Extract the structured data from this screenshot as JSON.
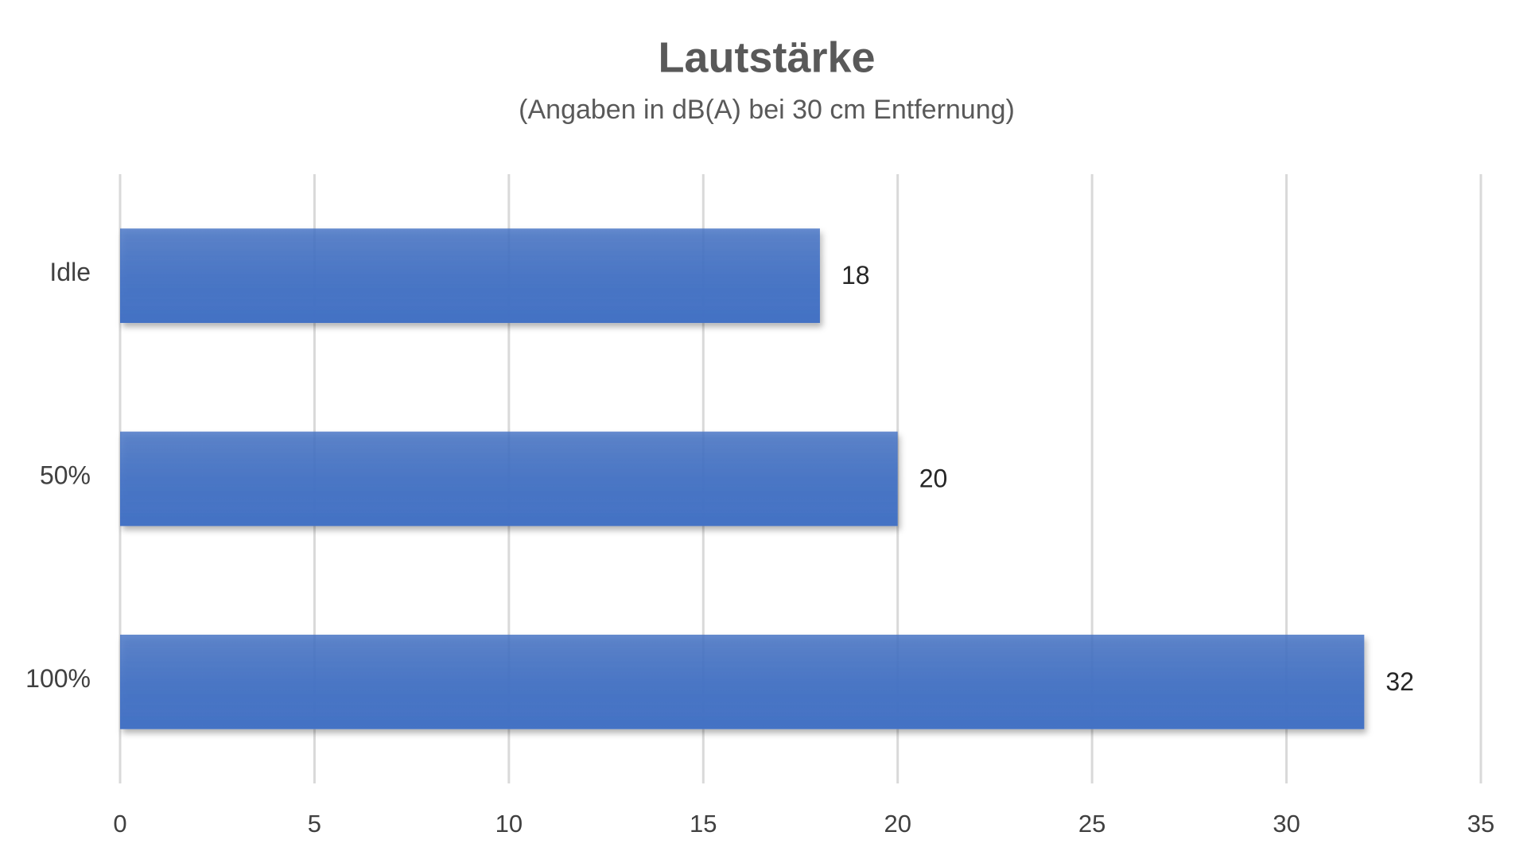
{
  "chart_data": {
    "type": "bar",
    "orientation": "horizontal",
    "title": "Lautstärke",
    "subtitle": "(Angaben in dB(A) bei 30 cm Entfernung)",
    "categories": [
      "Idle",
      "50%",
      "100%"
    ],
    "values": [
      18,
      20,
      32
    ],
    "color": "#4472c4",
    "xlim": [
      0,
      35
    ],
    "xticks": [
      0,
      5,
      10,
      15,
      20,
      25,
      30,
      35
    ],
    "grid": true
  }
}
